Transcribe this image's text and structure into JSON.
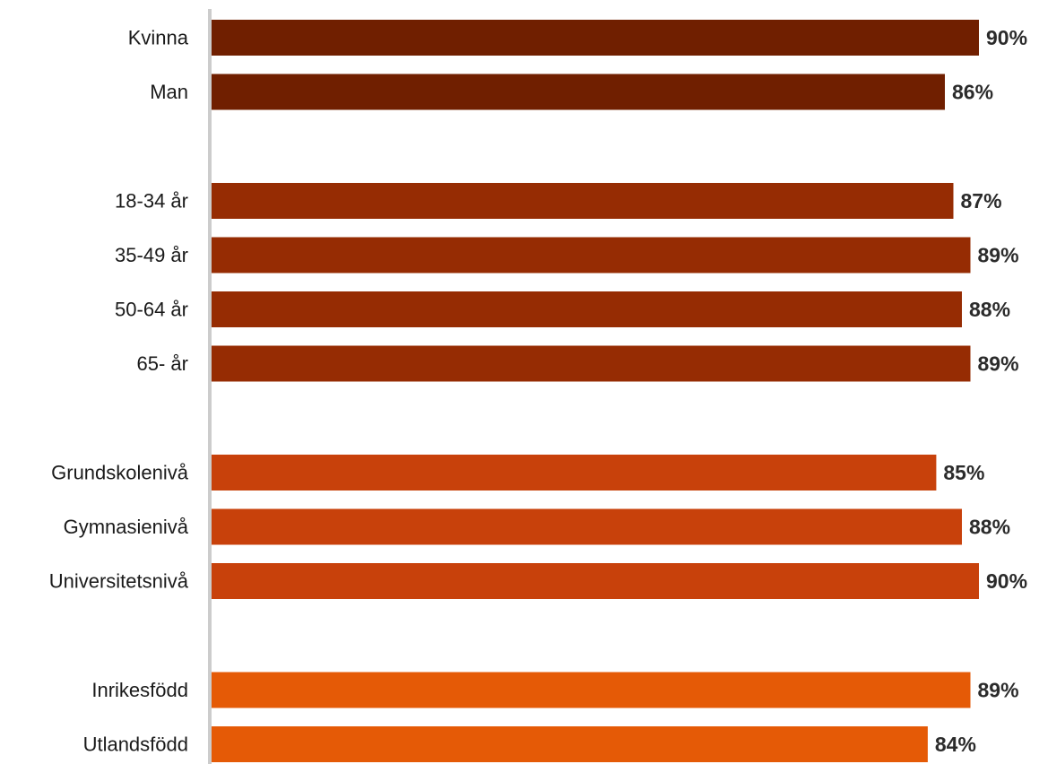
{
  "chart_data": {
    "type": "bar",
    "orientation": "horizontal",
    "grid": false,
    "legend": "none",
    "xlim": [
      0,
      94
    ],
    "colors": {
      "gender": "#701f00",
      "age": "#962c03",
      "education": "#c8410b",
      "origin": "#e55a06",
      "axis": "#cccccc"
    },
    "groups": [
      {
        "key": "gender",
        "categories": [
          "Kvinna",
          "Man"
        ],
        "values": [
          90,
          86
        ],
        "value_labels": [
          "90%",
          "86%"
        ]
      },
      {
        "key": "age",
        "categories": [
          "18-34 år",
          "35-49 år",
          "50-64 år",
          "65- år"
        ],
        "values": [
          87,
          89,
          88,
          89
        ],
        "value_labels": [
          "87%",
          "89%",
          "88%",
          "89%"
        ]
      },
      {
        "key": "education",
        "categories": [
          "Grundskolenivå",
          "Gymnasienivå",
          "Universitetsnivå"
        ],
        "values": [
          85,
          88,
          90
        ],
        "value_labels": [
          "85%",
          "88%",
          "90%"
        ]
      },
      {
        "key": "origin",
        "categories": [
          "Inrikesfödd",
          "Utlandsfödd"
        ],
        "values": [
          89,
          84
        ],
        "value_labels": [
          "89%",
          "84%"
        ]
      }
    ]
  }
}
